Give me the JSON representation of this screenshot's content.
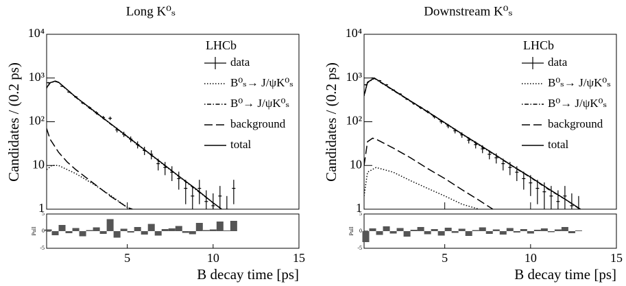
{
  "chart_data": [
    {
      "type": "line",
      "title": "Long K⁰ₛ",
      "x_label": "B decay time [ps]",
      "y_label": "Candidates / (0.2 ps)",
      "annotation": "LHCb",
      "log_y": true,
      "xlim": [
        0.3,
        15
      ],
      "xticks": [
        5,
        10,
        15
      ],
      "ylim": [
        1,
        10000
      ],
      "yticks": [
        1,
        10,
        {
          "value": 100,
          "label": "10²"
        },
        {
          "value": 1000,
          "label": "10³"
        },
        {
          "value": 10000,
          "label": "10⁴"
        }
      ],
      "data": {
        "name": "data",
        "color": "#000000",
        "x": [
          0.4,
          0.8,
          1.2,
          1.6,
          2.0,
          2.4,
          2.8,
          3.2,
          3.6,
          4.0,
          4.4,
          4.8,
          5.2,
          5.6,
          6.0,
          6.4,
          6.8,
          7.2,
          7.6,
          8.0,
          8.4,
          8.8,
          9.2,
          9.6,
          10.0,
          10.4,
          10.8,
          11.2
        ],
        "values": [
          780,
          840,
          650,
          480,
          370,
          270,
          210,
          160,
          125,
          120,
          65,
          52,
          40,
          30,
          22,
          18,
          11,
          9,
          7,
          5,
          3,
          2,
          3,
          1.5,
          1.2,
          2,
          1,
          3
        ],
        "errors": [
          28,
          29,
          25,
          22,
          19,
          16,
          14,
          13,
          11,
          11,
          8,
          7,
          6,
          5.5,
          4.7,
          4.2,
          3.3,
          3,
          2.6,
          2.2,
          1.7,
          1.4,
          1.7,
          1.2,
          1.1,
          1.4,
          1,
          1.7
        ]
      },
      "series": [
        {
          "name": "B⁰ₛ→ J/ψK⁰ₛ",
          "color": "#000000",
          "style": "dotted",
          "x": [
            0.3,
            0.6,
            1,
            2,
            3,
            4,
            5,
            5.2
          ],
          "values": [
            8,
            10,
            10,
            6.5,
            3.8,
            2.1,
            1.1,
            1
          ]
        },
        {
          "name": "B⁰→ J/ψK⁰ₛ",
          "color": "#000000",
          "style": "dashdot",
          "x": [
            0.3,
            0.5,
            0.8,
            1,
            2,
            3,
            4,
            5,
            6,
            7,
            8,
            9,
            10,
            10.5
          ],
          "values": [
            590,
            770,
            840,
            790,
            360,
            180,
            90,
            45,
            22.5,
            11.3,
            5.6,
            2.8,
            1.4,
            1
          ]
        },
        {
          "name": "background",
          "color": "#000000",
          "style": "dashed",
          "x": [
            0.3,
            0.5,
            1,
            1.5,
            2,
            3,
            4,
            5,
            5.3
          ],
          "values": [
            70,
            40,
            20,
            12,
            8,
            4,
            2,
            1.1,
            1
          ]
        },
        {
          "name": "total",
          "color": "#000000",
          "style": "solid",
          "x": [
            0.3,
            0.5,
            0.8,
            1,
            2,
            3,
            4,
            5,
            6,
            7,
            8,
            9,
            10,
            10.5
          ],
          "values": [
            600,
            780,
            850,
            800,
            366,
            184,
            92,
            46,
            23,
            11.5,
            5.7,
            2.9,
            1.4,
            1
          ]
        }
      ],
      "pull": {
        "label": "Pull",
        "color": "#555555",
        "ylim": [
          -5,
          5
        ],
        "yticks": [
          -5,
          0,
          5
        ],
        "values": [
          0.5,
          -1.2,
          1.8,
          -0.6,
          0.9,
          -1.5,
          0.3,
          1.1,
          -0.8,
          3.5,
          -1.9,
          0.7,
          -0.4,
          1.2,
          -1.0,
          2.1,
          -1.3,
          0.6,
          0.8,
          1.5,
          -0.5,
          -0.9,
          2.4,
          0.3,
          0.5,
          2.8,
          0.2,
          3.0
        ]
      }
    },
    {
      "type": "line",
      "title": "Downstream K⁰ₛ",
      "x_label": "B decay time [ps]",
      "y_label": "Candidates / (0.2 ps)",
      "annotation": "LHCb",
      "log_y": true,
      "xlim": [
        0.3,
        15
      ],
      "xticks": [
        5,
        10,
        15
      ],
      "ylim": [
        1,
        10000
      ],
      "yticks": [
        1,
        10,
        {
          "value": 100,
          "label": "10²"
        },
        {
          "value": 1000,
          "label": "10³"
        },
        {
          "value": 10000,
          "label": "10⁴"
        }
      ],
      "data": {
        "name": "data",
        "color": "#000000",
        "x": [
          0.4,
          0.8,
          1.2,
          1.6,
          2.0,
          2.4,
          2.8,
          3.2,
          3.6,
          4.0,
          4.4,
          4.8,
          5.2,
          5.6,
          6.0,
          6.4,
          6.8,
          7.2,
          7.6,
          8.0,
          8.4,
          8.8,
          9.2,
          9.6,
          10.0,
          10.4,
          10.8,
          11.2,
          11.6,
          12.0,
          12.4,
          12.8
        ],
        "values": [
          700,
          1000,
          870,
          700,
          530,
          430,
          330,
          260,
          210,
          170,
          130,
          100,
          80,
          62,
          50,
          38,
          30,
          24,
          18,
          15,
          11,
          9,
          7,
          5,
          4,
          3,
          2.5,
          2,
          1.5,
          2,
          1.2,
          1
        ],
        "errors": [
          26,
          32,
          29,
          26,
          23,
          21,
          18,
          16,
          14.5,
          13,
          11.4,
          10,
          9,
          7.9,
          7.1,
          6.2,
          5.5,
          4.9,
          4.2,
          3.9,
          3.3,
          3,
          2.6,
          2.2,
          2,
          1.7,
          1.6,
          1.4,
          1.2,
          1.4,
          1.1,
          1
        ]
      },
      "series": [
        {
          "name": "B⁰ₛ→ J/ψK⁰ₛ",
          "color": "#000000",
          "style": "dotted",
          "x": [
            0.3,
            0.5,
            1,
            2,
            3,
            4,
            5,
            6,
            7
          ],
          "values": [
            2,
            7,
            9,
            7,
            4.5,
            3,
            2,
            1.3,
            1
          ]
        },
        {
          "name": "B⁰→ J/ψK⁰ₛ",
          "color": "#000000",
          "style": "dashdot",
          "x": [
            0.3,
            0.5,
            0.9,
            2,
            3,
            4,
            5,
            6,
            7,
            8,
            9,
            10,
            11,
            12,
            13
          ],
          "values": [
            390,
            780,
            980,
            520,
            294,
            167,
            93,
            52,
            29,
            16.7,
            9.3,
            5.3,
            2.9,
            1.7,
            0.93
          ]
        },
        {
          "name": "background",
          "color": "#000000",
          "style": "dashed",
          "x": [
            0.3,
            0.5,
            0.8,
            1,
            2,
            3,
            4,
            5,
            6,
            7,
            7.8
          ],
          "values": [
            10,
            35,
            42,
            40,
            25,
            15,
            8.5,
            5,
            2.8,
            1.6,
            1
          ]
        },
        {
          "name": "total",
          "color": "#000000",
          "style": "solid",
          "x": [
            0.3,
            0.5,
            0.9,
            2,
            3,
            4,
            5,
            6,
            7,
            8,
            9,
            10,
            11,
            12,
            13
          ],
          "values": [
            400,
            800,
            1000,
            530,
            300,
            170,
            95,
            53,
            30,
            17,
            9.5,
            5.4,
            3,
            1.7,
            0.95
          ]
        }
      ],
      "pull": {
        "label": "Pull",
        "color": "#555555",
        "ylim": [
          -5,
          5
        ],
        "yticks": [
          -5,
          0,
          5
        ],
        "values": [
          -3.2,
          0.8,
          -1.1,
          1.4,
          -0.7,
          0.9,
          -1.6,
          0.4,
          1.2,
          -0.9,
          0.6,
          -1.3,
          1.0,
          -0.5,
          0.7,
          -1.4,
          0.3,
          1.1,
          -0.8,
          0.5,
          -1.0,
          0.9,
          -0.4,
          0.6,
          -0.7,
          0.4,
          0.8,
          -0.3,
          0.5,
          1.2,
          -0.6,
          0.2
        ]
      }
    }
  ]
}
